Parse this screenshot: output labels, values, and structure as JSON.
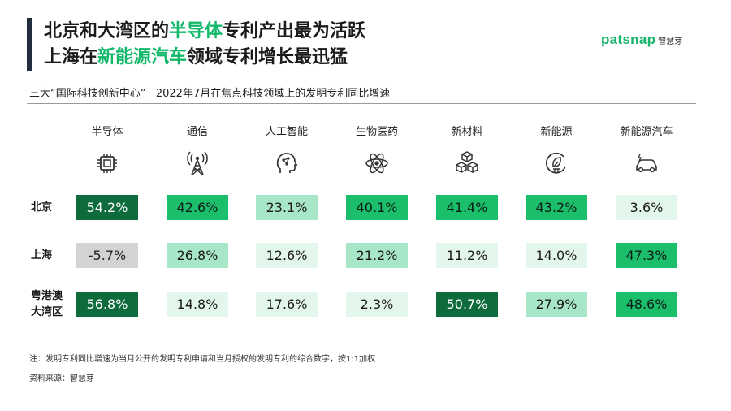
{
  "title": {
    "line1_pre": "北京和大湾区的",
    "line1_hl": "半导体",
    "line1_post": "专利产出最为活跃",
    "line2_pre": "上海在",
    "line2_hl": "新能源汽车",
    "line2_post": "领域专利增长最迅猛"
  },
  "logo": {
    "word": "patsnap",
    "cn": "智慧芽"
  },
  "subtitle": "三大“国际科技创新中心”   2022年7月在焦点科技领域上的发明专利同比增速",
  "note": "注：发明专利同比增速为当月公开的发明专利申请和当月授权的发明专利的综合数字，按1:1加权",
  "source": "资料来源：智慧芽",
  "colors": {
    "accent": "#12b86a",
    "level_dark": "#0e6b3c",
    "level_mid": "#1bbf6b",
    "level_light": "#a8e6c8",
    "level_pale": "#e3f6ec",
    "negative": "#d3d3d3"
  },
  "chart_data": {
    "type": "table",
    "categories": [
      "半导体",
      "通信",
      "人工智能",
      "生物医药",
      "新材料",
      "新能源",
      "新能源汽车"
    ],
    "icons": [
      "chip-icon",
      "antenna-tower-icon",
      "ai-head-icon",
      "atom-icon",
      "cubes-icon",
      "leaf-plug-icon",
      "electric-car-icon"
    ],
    "rows": [
      {
        "name": "北京",
        "values": [
          "54.2%",
          "42.6%",
          "23.1%",
          "40.1%",
          "41.4%",
          "43.2%",
          "3.6%"
        ],
        "levels": [
          1,
          2,
          3,
          2,
          2,
          2,
          4
        ]
      },
      {
        "name": "上海",
        "values": [
          "-5.7%",
          "26.8%",
          "12.6%",
          "21.2%",
          "11.2%",
          "14.0%",
          "47.3%"
        ],
        "levels": [
          0,
          3,
          4,
          3,
          4,
          4,
          2
        ]
      },
      {
        "name": "粤港澳\n大湾区",
        "values": [
          "56.8%",
          "14.8%",
          "17.6%",
          "2.3%",
          "50.7%",
          "27.9%",
          "48.6%"
        ],
        "levels": [
          1,
          4,
          4,
          4,
          1,
          3,
          2
        ]
      }
    ]
  }
}
